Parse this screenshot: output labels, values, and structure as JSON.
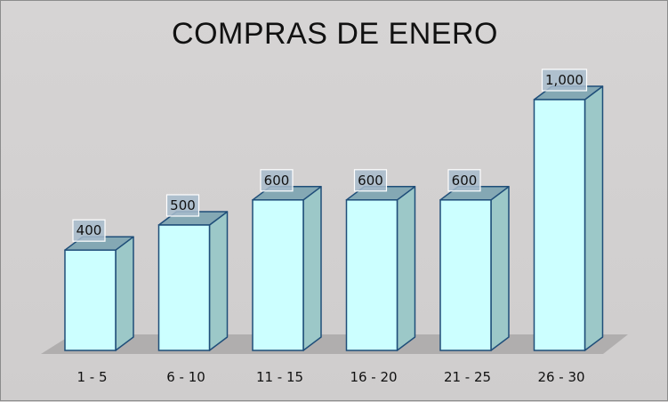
{
  "chart_data": {
    "type": "bar",
    "title": "COMPRAS DE ENERO",
    "categories": [
      "1 - 5",
      "6 - 10",
      "11 - 15",
      "16 - 20",
      "21 - 25",
      "26 - 30"
    ],
    "values": [
      400,
      500,
      600,
      600,
      600,
      1000
    ],
    "data_labels": [
      "400",
      "500",
      "600",
      "600",
      "600",
      "1,000"
    ],
    "xlabel": "",
    "ylabel": "",
    "ylim": [
      0,
      1000
    ],
    "grid": false,
    "style": "3d-column",
    "colors": {
      "bar_front": "#ccffff",
      "bar_side": "#9cc8c8",
      "bar_top": "#84a8b4",
      "bar_edge": "#1f4e79",
      "floor": "#b0aeae",
      "label_bg": "#a8bccc"
    }
  }
}
